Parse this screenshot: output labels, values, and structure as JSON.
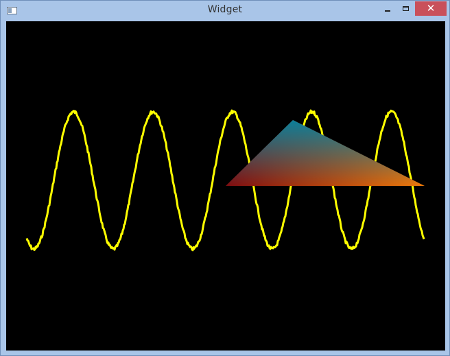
{
  "window": {
    "title": "Widget",
    "close_symbol": "✕",
    "icons": [
      "app-icon",
      "minimize-icon",
      "maximize-icon",
      "close-icon"
    ]
  },
  "canvas": {
    "background": "#000000",
    "sine_wave": {
      "color": "#ffff00",
      "cycles": 5,
      "noisy": true
    },
    "triangle": {
      "colors": [
        "#0b7f9a",
        "#7d0c10",
        "#ee7a0a"
      ],
      "fill": "gradient"
    }
  }
}
